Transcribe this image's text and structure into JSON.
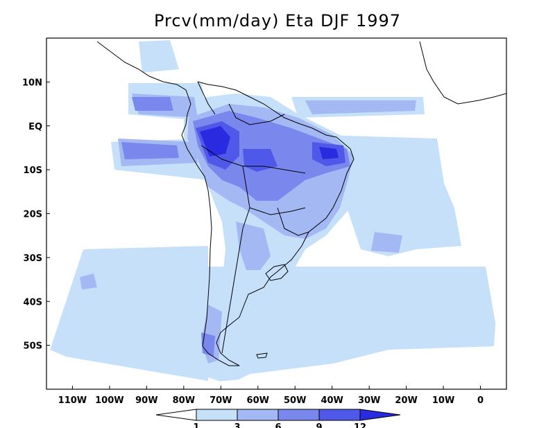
{
  "title": "Prcv(mm/day) Eta DJF 1997",
  "chart_data": {
    "type": "heatmap",
    "variable": "Prcv",
    "units": "mm/day",
    "model": "Eta",
    "season": "DJF",
    "year": "1997",
    "xlim": [
      -117,
      7
    ],
    "ylim": [
      -60,
      20
    ],
    "x_ticks": [
      {
        "value": -110,
        "label": "110W"
      },
      {
        "value": -100,
        "label": "100W"
      },
      {
        "value": -90,
        "label": "90W"
      },
      {
        "value": -80,
        "label": "80W"
      },
      {
        "value": -70,
        "label": "70W"
      },
      {
        "value": -60,
        "label": "60W"
      },
      {
        "value": -50,
        "label": "50W"
      },
      {
        "value": -40,
        "label": "40W"
      },
      {
        "value": -30,
        "label": "30W"
      },
      {
        "value": -20,
        "label": "20W"
      },
      {
        "value": -10,
        "label": "10W"
      },
      {
        "value": 0,
        "label": "0"
      }
    ],
    "y_ticks": [
      {
        "value": 10,
        "label": "10N"
      },
      {
        "value": 0,
        "label": "EQ"
      },
      {
        "value": -10,
        "label": "10S"
      },
      {
        "value": -20,
        "label": "20S"
      },
      {
        "value": -30,
        "label": "30S"
      },
      {
        "value": -40,
        "label": "40S"
      },
      {
        "value": -50,
        "label": "50S"
      }
    ],
    "colorbar": {
      "levels": [
        "1",
        "3",
        "6",
        "9",
        "12"
      ],
      "colors": [
        "#ffffff",
        "#c6e0fa",
        "#a4b8f4",
        "#7a88ee",
        "#5058ea",
        "#2a2ae0"
      ]
    }
  }
}
